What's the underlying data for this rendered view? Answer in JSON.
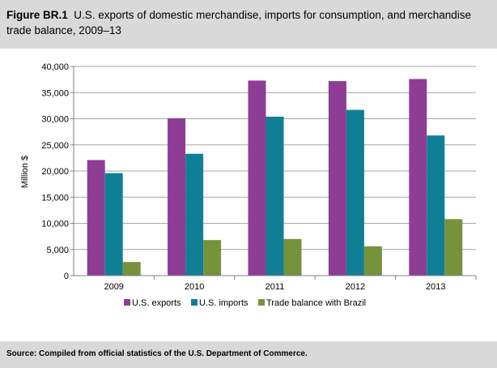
{
  "header": {
    "figure_label": "Figure BR.1",
    "title": "U.S. exports of domestic merchandise, imports for consumption, and merchandise trade balance, 2009–13"
  },
  "footer": {
    "source": "Source: Compiled from official statistics of the U.S. Department of Commerce."
  },
  "chart_data": {
    "type": "bar",
    "categories": [
      "2009",
      "2010",
      "2011",
      "2012",
      "2013"
    ],
    "series": [
      {
        "name": "U.S. exports",
        "color": "#8e3d97",
        "values": [
          22100,
          30100,
          37300,
          37200,
          37600
        ]
      },
      {
        "name": "U.S. imports",
        "color": "#0f7f96",
        "values": [
          19600,
          23300,
          30400,
          31700,
          26800
        ]
      },
      {
        "name": "Trade balance with Brazil",
        "color": "#76933c",
        "values": [
          2600,
          6800,
          7000,
          5600,
          10800
        ]
      }
    ],
    "ylabel": "Million $",
    "xlabel": "",
    "ylim": [
      0,
      40000
    ],
    "yticks": [
      0,
      5000,
      10000,
      15000,
      20000,
      25000,
      30000,
      35000,
      40000
    ],
    "ytick_labels": [
      "0",
      "5,000",
      "10,000",
      "15,000",
      "20,000",
      "25,000",
      "30,000",
      "35,000",
      "40,000"
    ],
    "legend_position": "bottom"
  }
}
